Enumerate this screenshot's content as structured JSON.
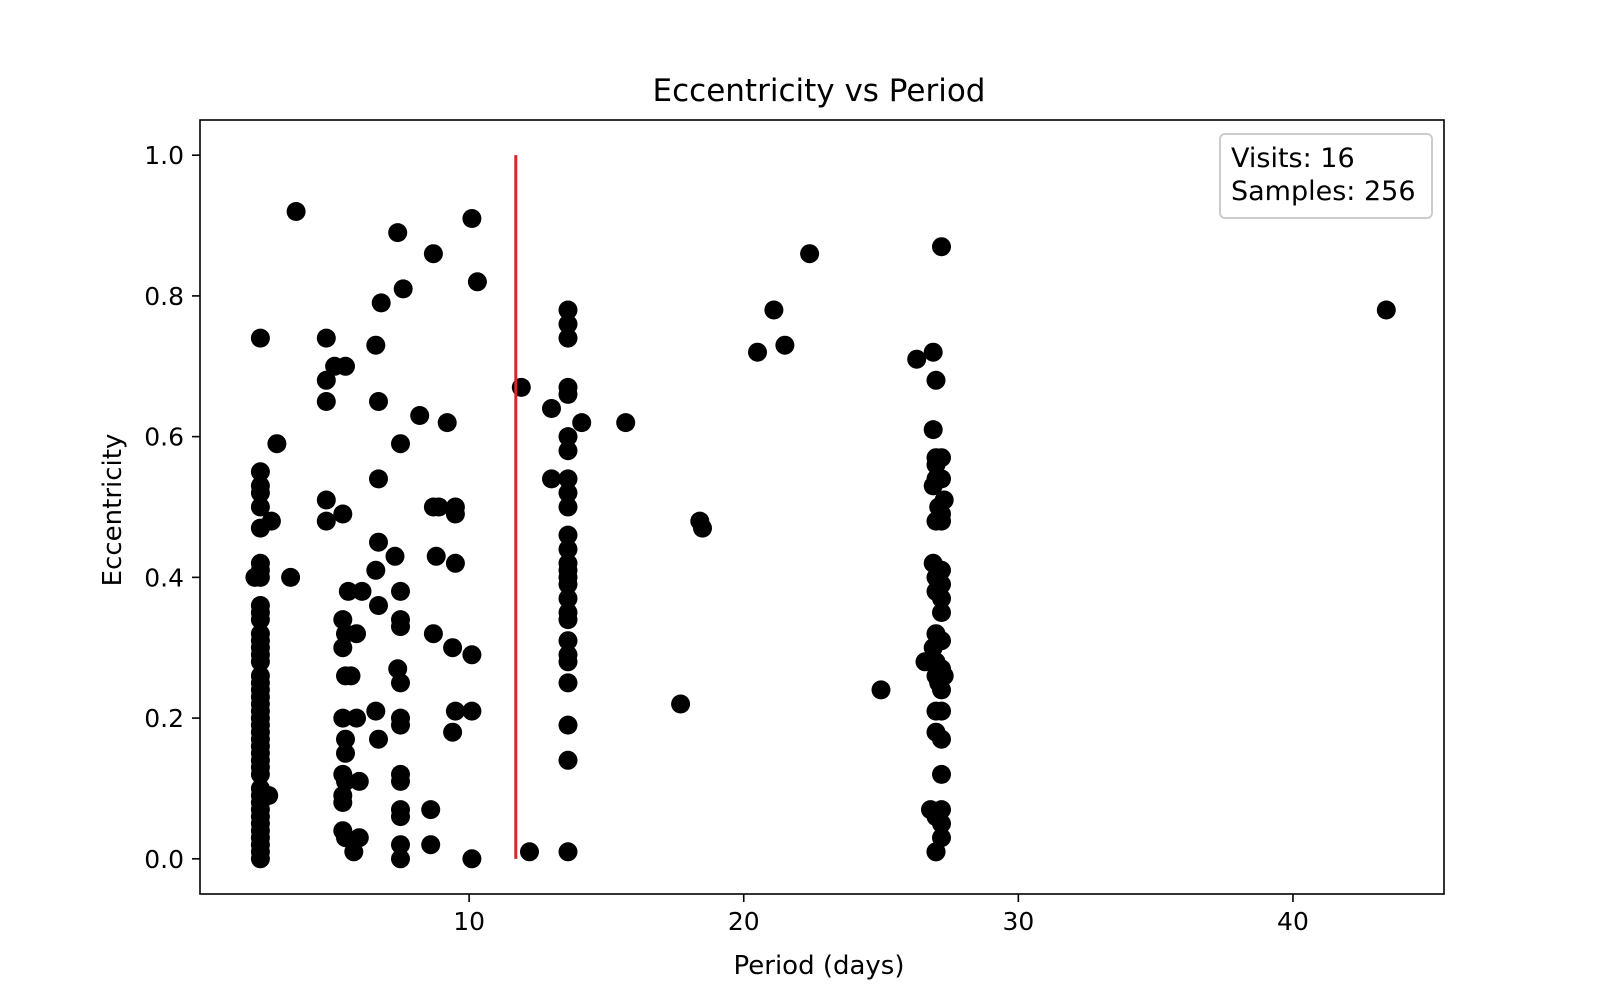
{
  "chart_data": {
    "type": "scatter",
    "title": "Eccentricity vs Period",
    "xlabel": "Period (days)",
    "ylabel": "Eccentricity",
    "xlim": [
      0.2,
      45.5
    ],
    "ylim": [
      -0.05,
      1.05
    ],
    "xticks": [
      10,
      20,
      30,
      40
    ],
    "yticks": [
      0.0,
      0.2,
      0.4,
      0.6,
      0.8,
      1.0
    ],
    "ytick_labels": [
      "0.0",
      "0.2",
      "0.4",
      "0.6",
      "0.8",
      "1.0"
    ],
    "grid": false,
    "marker_color": "#000000",
    "vline": {
      "x": 11.7,
      "y_start": 0.0,
      "y_end": 1.0,
      "color": "#d62728"
    },
    "annotation": {
      "line1": "Visits: 16",
      "line2": "Samples: 256",
      "position": "top-right"
    },
    "series": [
      {
        "points": [
          [
            2.4,
            0.74
          ],
          [
            2.4,
            0.55
          ],
          [
            2.4,
            0.53
          ],
          [
            2.4,
            0.52
          ],
          [
            2.4,
            0.5
          ],
          [
            2.4,
            0.47
          ],
          [
            2.4,
            0.42
          ],
          [
            2.4,
            0.41
          ],
          [
            2.4,
            0.4
          ],
          [
            2.4,
            0.36
          ],
          [
            2.4,
            0.35
          ],
          [
            2.4,
            0.34
          ],
          [
            2.4,
            0.32
          ],
          [
            2.4,
            0.31
          ],
          [
            2.4,
            0.3
          ],
          [
            2.4,
            0.29
          ],
          [
            2.4,
            0.28
          ],
          [
            2.4,
            0.26
          ],
          [
            2.4,
            0.25
          ],
          [
            2.4,
            0.24
          ],
          [
            2.4,
            0.23
          ],
          [
            2.4,
            0.22
          ],
          [
            2.4,
            0.21
          ],
          [
            2.4,
            0.2
          ],
          [
            2.4,
            0.19
          ],
          [
            2.4,
            0.18
          ],
          [
            2.4,
            0.17
          ],
          [
            2.4,
            0.16
          ],
          [
            2.4,
            0.15
          ],
          [
            2.4,
            0.14
          ],
          [
            2.4,
            0.13
          ],
          [
            2.4,
            0.12
          ],
          [
            2.4,
            0.1
          ],
          [
            2.4,
            0.09
          ],
          [
            2.4,
            0.08
          ],
          [
            2.4,
            0.07
          ],
          [
            2.4,
            0.06
          ],
          [
            2.4,
            0.05
          ],
          [
            2.4,
            0.04
          ],
          [
            2.4,
            0.03
          ],
          [
            2.4,
            0.02
          ],
          [
            2.4,
            0.01
          ],
          [
            2.4,
            0.0
          ],
          [
            2.2,
            0.4
          ],
          [
            2.7,
            0.09
          ],
          [
            2.8,
            0.48
          ],
          [
            3.0,
            0.59
          ],
          [
            3.5,
            0.4
          ],
          [
            3.7,
            0.92
          ],
          [
            4.8,
            0.74
          ],
          [
            4.8,
            0.68
          ],
          [
            4.8,
            0.65
          ],
          [
            4.8,
            0.51
          ],
          [
            4.8,
            0.48
          ],
          [
            5.1,
            0.7
          ],
          [
            5.5,
            0.7
          ],
          [
            5.4,
            0.49
          ],
          [
            5.6,
            0.38
          ],
          [
            5.4,
            0.34
          ],
          [
            5.5,
            0.32
          ],
          [
            5.4,
            0.3
          ],
          [
            5.5,
            0.26
          ],
          [
            5.7,
            0.26
          ],
          [
            5.4,
            0.2
          ],
          [
            5.5,
            0.17
          ],
          [
            5.5,
            0.15
          ],
          [
            5.4,
            0.12
          ],
          [
            5.5,
            0.11
          ],
          [
            5.4,
            0.09
          ],
          [
            5.4,
            0.08
          ],
          [
            5.4,
            0.04
          ],
          [
            5.5,
            0.03
          ],
          [
            5.8,
            0.01
          ],
          [
            5.9,
            0.32
          ],
          [
            5.9,
            0.2
          ],
          [
            6.0,
            0.03
          ],
          [
            6.1,
            0.38
          ],
          [
            6.0,
            0.11
          ],
          [
            6.6,
            0.73
          ],
          [
            6.7,
            0.65
          ],
          [
            6.7,
            0.54
          ],
          [
            6.7,
            0.45
          ],
          [
            6.6,
            0.41
          ],
          [
            6.7,
            0.36
          ],
          [
            6.6,
            0.21
          ],
          [
            6.7,
            0.17
          ],
          [
            6.8,
            0.79
          ],
          [
            7.4,
            0.89
          ],
          [
            7.6,
            0.81
          ],
          [
            7.5,
            0.59
          ],
          [
            7.3,
            0.43
          ],
          [
            7.5,
            0.38
          ],
          [
            7.5,
            0.34
          ],
          [
            7.5,
            0.33
          ],
          [
            7.4,
            0.27
          ],
          [
            7.5,
            0.25
          ],
          [
            7.5,
            0.2
          ],
          [
            7.5,
            0.19
          ],
          [
            7.5,
            0.12
          ],
          [
            7.5,
            0.11
          ],
          [
            7.5,
            0.07
          ],
          [
            7.5,
            0.06
          ],
          [
            7.5,
            0.02
          ],
          [
            7.5,
            0.0
          ],
          [
            8.2,
            0.63
          ],
          [
            8.7,
            0.86
          ],
          [
            8.7,
            0.5
          ],
          [
            8.9,
            0.5
          ],
          [
            8.8,
            0.43
          ],
          [
            8.7,
            0.32
          ],
          [
            8.6,
            0.07
          ],
          [
            8.6,
            0.02
          ],
          [
            9.2,
            0.62
          ],
          [
            9.5,
            0.5
          ],
          [
            9.5,
            0.49
          ],
          [
            9.5,
            0.42
          ],
          [
            9.4,
            0.3
          ],
          [
            9.5,
            0.21
          ],
          [
            9.4,
            0.18
          ],
          [
            10.1,
            0.91
          ],
          [
            10.3,
            0.82
          ],
          [
            10.1,
            0.29
          ],
          [
            10.1,
            0.21
          ],
          [
            10.1,
            0.0
          ],
          [
            11.9,
            0.67
          ],
          [
            12.2,
            0.01
          ],
          [
            13.0,
            0.64
          ],
          [
            13.0,
            0.54
          ],
          [
            13.6,
            0.78
          ],
          [
            13.6,
            0.76
          ],
          [
            13.6,
            0.74
          ],
          [
            13.6,
            0.67
          ],
          [
            13.6,
            0.66
          ],
          [
            13.6,
            0.6
          ],
          [
            13.6,
            0.58
          ],
          [
            13.6,
            0.54
          ],
          [
            13.6,
            0.52
          ],
          [
            13.6,
            0.5
          ],
          [
            13.6,
            0.46
          ],
          [
            13.6,
            0.44
          ],
          [
            13.6,
            0.42
          ],
          [
            13.6,
            0.41
          ],
          [
            13.6,
            0.4
          ],
          [
            13.6,
            0.39
          ],
          [
            13.6,
            0.37
          ],
          [
            13.6,
            0.35
          ],
          [
            13.6,
            0.34
          ],
          [
            13.6,
            0.31
          ],
          [
            13.6,
            0.29
          ],
          [
            13.6,
            0.28
          ],
          [
            13.6,
            0.25
          ],
          [
            13.6,
            0.19
          ],
          [
            13.6,
            0.14
          ],
          [
            13.6,
            0.01
          ],
          [
            14.1,
            0.62
          ],
          [
            15.7,
            0.62
          ],
          [
            17.7,
            0.22
          ],
          [
            18.4,
            0.48
          ],
          [
            18.5,
            0.47
          ],
          [
            20.5,
            0.72
          ],
          [
            21.1,
            0.78
          ],
          [
            21.5,
            0.73
          ],
          [
            22.4,
            0.86
          ],
          [
            25.0,
            0.24
          ],
          [
            26.3,
            0.71
          ],
          [
            27.2,
            0.87
          ],
          [
            26.9,
            0.72
          ],
          [
            27.0,
            0.68
          ],
          [
            26.9,
            0.61
          ],
          [
            27.0,
            0.57
          ],
          [
            27.2,
            0.57
          ],
          [
            27.0,
            0.56
          ],
          [
            27.0,
            0.54
          ],
          [
            26.9,
            0.53
          ],
          [
            27.2,
            0.54
          ],
          [
            27.3,
            0.51
          ],
          [
            27.1,
            0.5
          ],
          [
            27.2,
            0.49
          ],
          [
            27.0,
            0.48
          ],
          [
            27.2,
            0.48
          ],
          [
            26.9,
            0.42
          ],
          [
            27.2,
            0.41
          ],
          [
            27.0,
            0.4
          ],
          [
            27.2,
            0.39
          ],
          [
            27.0,
            0.38
          ],
          [
            27.2,
            0.37
          ],
          [
            27.2,
            0.35
          ],
          [
            27.0,
            0.32
          ],
          [
            27.2,
            0.31
          ],
          [
            26.9,
            0.3
          ],
          [
            26.6,
            0.28
          ],
          [
            27.0,
            0.28
          ],
          [
            27.2,
            0.27
          ],
          [
            27.0,
            0.26
          ],
          [
            27.3,
            0.26
          ],
          [
            27.1,
            0.25
          ],
          [
            27.2,
            0.24
          ],
          [
            27.2,
            0.21
          ],
          [
            27.0,
            0.21
          ],
          [
            27.0,
            0.18
          ],
          [
            27.2,
            0.17
          ],
          [
            27.2,
            0.12
          ],
          [
            26.8,
            0.07
          ],
          [
            27.2,
            0.07
          ],
          [
            27.0,
            0.06
          ],
          [
            27.2,
            0.05
          ],
          [
            27.2,
            0.03
          ],
          [
            27.0,
            0.01
          ],
          [
            27.0,
            0.01
          ],
          [
            43.4,
            0.78
          ]
        ]
      }
    ]
  }
}
